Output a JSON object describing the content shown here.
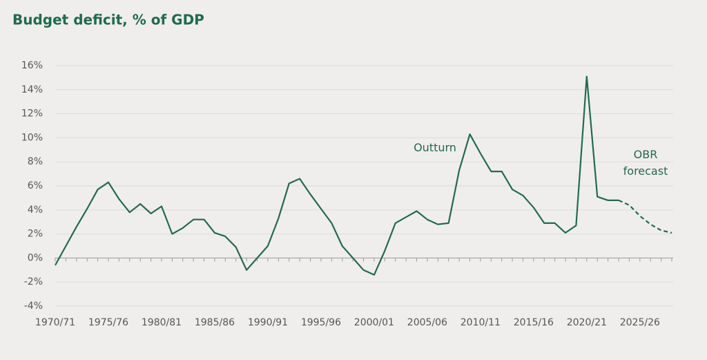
{
  "chart_data": {
    "type": "line",
    "title": "Budget deficit, % of GDP",
    "categories": [
      "1970/71",
      null,
      null,
      null,
      null,
      "1975/76",
      null,
      null,
      null,
      null,
      "1980/81",
      null,
      null,
      null,
      null,
      "1985/86",
      null,
      null,
      null,
      null,
      "1990/91",
      null,
      null,
      null,
      null,
      "1995/96",
      null,
      null,
      null,
      null,
      "2000/01",
      null,
      null,
      null,
      null,
      "2005/06",
      null,
      null,
      null,
      null,
      "2010/11",
      null,
      null,
      null,
      null,
      "2015/16",
      null,
      null,
      null,
      null,
      "2020/21",
      null,
      null,
      null,
      null,
      "2025/26",
      null,
      null,
      null
    ],
    "series": [
      {
        "name": "Outturn",
        "color": "#1f6b4e",
        "dashed": false,
        "values": [
          -0.6,
          1.0,
          2.6,
          4.1,
          5.7,
          6.3,
          4.9,
          3.8,
          4.5,
          3.7,
          4.3,
          2.0,
          2.5,
          3.2,
          3.2,
          2.1,
          1.8,
          0.9,
          -1.0,
          0.0,
          1.0,
          3.3,
          6.2,
          6.6,
          5.3,
          4.1,
          2.9,
          1.0,
          0.0,
          -1.0,
          -1.4,
          0.6,
          2.9,
          3.4,
          3.9,
          3.2,
          2.8,
          2.9,
          7.3,
          10.3,
          8.7,
          7.2,
          7.2,
          5.7,
          5.2,
          4.2,
          2.9,
          2.9,
          2.1,
          2.7,
          15.1,
          5.1,
          4.8,
          4.8,
          null,
          null,
          null,
          null,
          null
        ]
      },
      {
        "name": "OBR forecast",
        "color": "#1f6b4e",
        "dashed": true,
        "values": [
          null,
          null,
          null,
          null,
          null,
          null,
          null,
          null,
          null,
          null,
          null,
          null,
          null,
          null,
          null,
          null,
          null,
          null,
          null,
          null,
          null,
          null,
          null,
          null,
          null,
          null,
          null,
          null,
          null,
          null,
          null,
          null,
          null,
          null,
          null,
          null,
          null,
          null,
          null,
          null,
          null,
          null,
          null,
          null,
          null,
          null,
          null,
          null,
          null,
          null,
          null,
          null,
          null,
          4.8,
          4.4,
          3.5,
          2.8,
          2.3,
          2.1
        ]
      }
    ],
    "ylim": [
      -4,
      16
    ],
    "yticks": [
      {
        "value": -4,
        "label": "-4%"
      },
      {
        "value": -2,
        "label": "-2%"
      },
      {
        "value": 0,
        "label": "0%"
      },
      {
        "value": 2,
        "label": "2%"
      },
      {
        "value": 4,
        "label": "4%"
      },
      {
        "value": 6,
        "label": "6%"
      },
      {
        "value": 8,
        "label": "8%"
      },
      {
        "value": 10,
        "label": "10%"
      },
      {
        "value": 12,
        "label": "12%"
      },
      {
        "value": 14,
        "label": "14%"
      },
      {
        "value": 16,
        "label": "16%"
      }
    ],
    "grid": true
  }
}
